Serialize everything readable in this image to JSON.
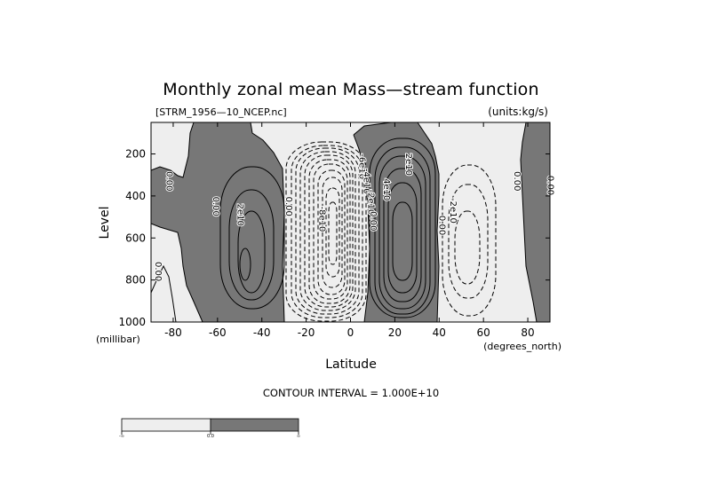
{
  "chart_data": {
    "type": "contour",
    "title": "Monthly zonal mean Mass—stream function",
    "source_file": "[STRM_1956—10_NCEP.nc]",
    "units": "(units:kg/s)",
    "xlabel": "Latitude",
    "x_units": "(degrees_north)",
    "ylabel": "Level",
    "y_units": "(millibar)",
    "xlim": [
      -90,
      90
    ],
    "ylim": [
      1000,
      50
    ],
    "x_ticks": [
      -80,
      -60,
      -40,
      -20,
      0,
      20,
      40,
      60,
      80
    ],
    "y_ticks": [
      200,
      400,
      600,
      800,
      1000
    ],
    "contour_interval_label": "CONTOUR INTERVAL = 1.000E+10",
    "contour_interval": 10000000000,
    "shading": {
      "negative_color": "#eeeeee",
      "positive_color": "#777777"
    },
    "colorbar": {
      "labels": [
        "-∞",
        "0.0",
        "∞"
      ]
    },
    "cells": [
      {
        "lat": -52,
        "level": 650,
        "sign": "positive",
        "max_level": 3
      },
      {
        "lat": -5,
        "level": 560,
        "sign": "negative",
        "max_level": 12
      },
      {
        "lat": 20,
        "level": 560,
        "sign": "positive",
        "max_level": 6
      },
      {
        "lat": 52,
        "level": 560,
        "sign": "negative",
        "max_level": 3
      }
    ],
    "contour_labels": [
      {
        "text": "0.00",
        "lat": -83,
        "level": 330
      },
      {
        "text": "0.00",
        "lat": -62,
        "level": 450
      },
      {
        "text": "2e10",
        "lat": -51,
        "level": 490
      },
      {
        "text": "0.00",
        "lat": -29,
        "level": 450
      },
      {
        "text": "0.00",
        "lat": -88,
        "level": 760
      },
      {
        "text": "-8e10",
        "lat": -14,
        "level": 510
      },
      {
        "text": "-6e10",
        "lat": 4,
        "level": 260
      },
      {
        "text": "-4e10",
        "lat": 6,
        "level": 330
      },
      {
        "text": "-2e10",
        "lat": 8,
        "level": 430
      },
      {
        "text": "0.00",
        "lat": 9,
        "level": 520
      },
      {
        "text": "2e10",
        "lat": 25,
        "level": 250
      },
      {
        "text": "4e10",
        "lat": 15,
        "level": 370
      },
      {
        "text": "0.00",
        "lat": 40,
        "level": 540
      },
      {
        "text": "-2e10",
        "lat": 45,
        "level": 470
      },
      {
        "text": "0.00",
        "lat": 74,
        "level": 330
      },
      {
        "text": "0.00",
        "lat": 89,
        "level": 350
      }
    ]
  }
}
